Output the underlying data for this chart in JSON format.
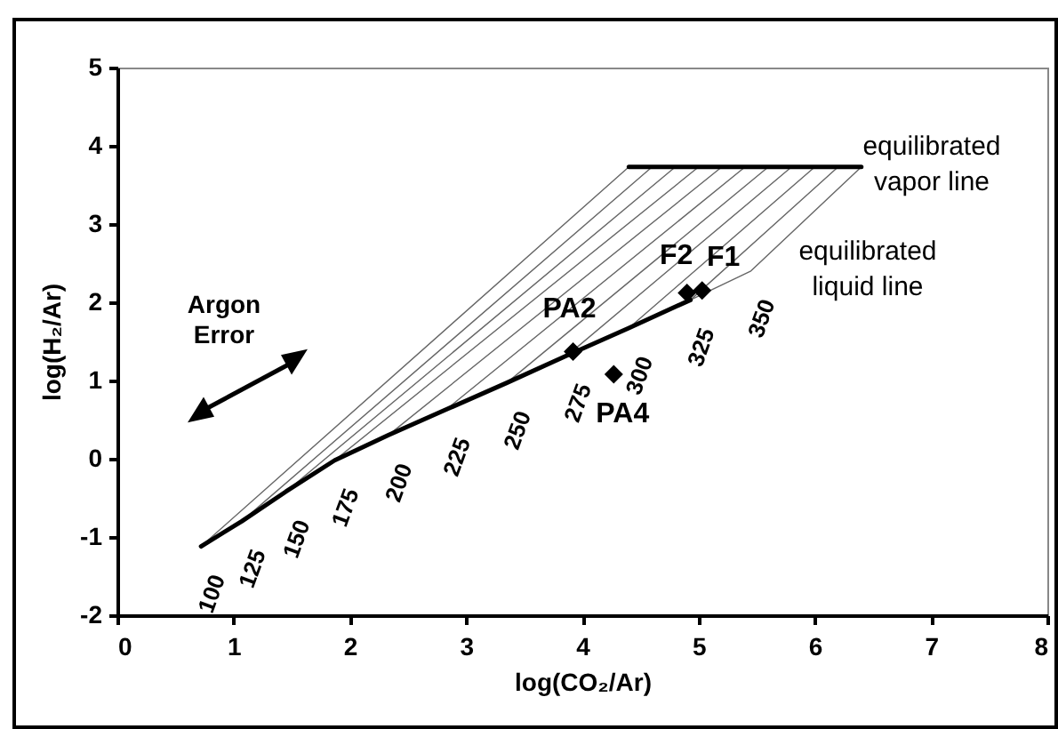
{
  "chart_data": {
    "type": "line",
    "xlabel": "log(CO₂/Ar)",
    "ylabel": "log(H₂/Ar)",
    "xlim": [
      0,
      8
    ],
    "ylim": [
      -2,
      5
    ],
    "xticks": [
      0,
      1,
      2,
      3,
      4,
      5,
      6,
      7,
      8
    ],
    "yticks": [
      -2,
      -1,
      0,
      1,
      2,
      3,
      4,
      5
    ],
    "grid": false,
    "series": [
      {
        "color": "#666666",
        "x": [
          0.72,
          4.4
        ],
        "values": [
          -1.12,
          3.73
        ]
      },
      {
        "color": "#666666",
        "x": [
          1.07,
          4.6
        ],
        "values": [
          -0.8,
          3.73
        ]
      },
      {
        "color": "#666666",
        "x": [
          1.45,
          4.8
        ],
        "values": [
          -0.42,
          3.73
        ]
      },
      {
        "color": "#666666",
        "x": [
          1.87,
          5.0
        ],
        "values": [
          -0.02,
          3.73
        ]
      },
      {
        "color": "#666666",
        "x": [
          2.33,
          5.2
        ],
        "values": [
          0.3,
          3.73
        ]
      },
      {
        "color": "#666666",
        "x": [
          2.83,
          5.4
        ],
        "values": [
          0.63,
          3.73
        ]
      },
      {
        "color": "#666666",
        "x": [
          3.35,
          5.6
        ],
        "values": [
          0.97,
          3.73
        ]
      },
      {
        "color": "#666666",
        "x": [
          3.87,
          5.8
        ],
        "values": [
          1.32,
          3.73
        ]
      },
      {
        "color": "#666666",
        "x": [
          4.4,
          6.0
        ],
        "values": [
          1.67,
          3.73
        ]
      },
      {
        "color": "#666666",
        "x": [
          4.93,
          6.2
        ],
        "values": [
          2.03,
          3.73
        ]
      },
      {
        "color": "#666666",
        "x": [
          4.93,
          5.45,
          6.4
        ],
        "values": [
          2.03,
          2.4,
          3.73
        ]
      },
      {
        "color": "#000000",
        "x": [
          0.72,
          1.07,
          1.45,
          1.87,
          2.33,
          2.83,
          3.35,
          3.87,
          4.4,
          4.93
        ],
        "values": [
          -1.12,
          -0.8,
          -0.42,
          -0.02,
          0.3,
          0.63,
          0.97,
          1.32,
          1.67,
          2.03
        ]
      },
      {
        "color": "#000000",
        "x": [
          4.4,
          6.4
        ],
        "values": [
          3.73,
          3.73
        ]
      },
      {
        "type": "scatter",
        "marker": "diamond",
        "color": "#000000",
        "x": [
          3.92,
          4.27,
          4.9,
          5.03
        ],
        "values": [
          1.37,
          1.08,
          2.12,
          2.15
        ]
      }
    ],
    "annotations": [
      {
        "text": "100",
        "x": 0.72,
        "y": -1.12
      },
      {
        "text": "125",
        "x": 1.07,
        "y": -0.8
      },
      {
        "text": "150",
        "x": 1.45,
        "y": -0.42
      },
      {
        "text": "175",
        "x": 1.87,
        "y": -0.02
      },
      {
        "text": "200",
        "x": 2.33,
        "y": 0.3
      },
      {
        "text": "225",
        "x": 2.83,
        "y": 0.63
      },
      {
        "text": "250",
        "x": 3.35,
        "y": 0.97
      },
      {
        "text": "275",
        "x": 3.87,
        "y": 1.32
      },
      {
        "text": "300",
        "x": 4.4,
        "y": 1.67
      },
      {
        "text": "325",
        "x": 4.93,
        "y": 2.03
      },
      {
        "text": "350",
        "x": 5.45,
        "y": 2.4
      },
      {
        "text": "PA2",
        "x": 3.92,
        "y": 1.37
      },
      {
        "text": "PA4",
        "x": 4.27,
        "y": 1.08
      },
      {
        "text": "F2",
        "x": 4.9,
        "y": 2.12
      },
      {
        "text": "F1",
        "x": 5.03,
        "y": 2.15
      },
      "equilibrated vapor line",
      "equilibrated liquid line",
      "Argon Error"
    ]
  }
}
